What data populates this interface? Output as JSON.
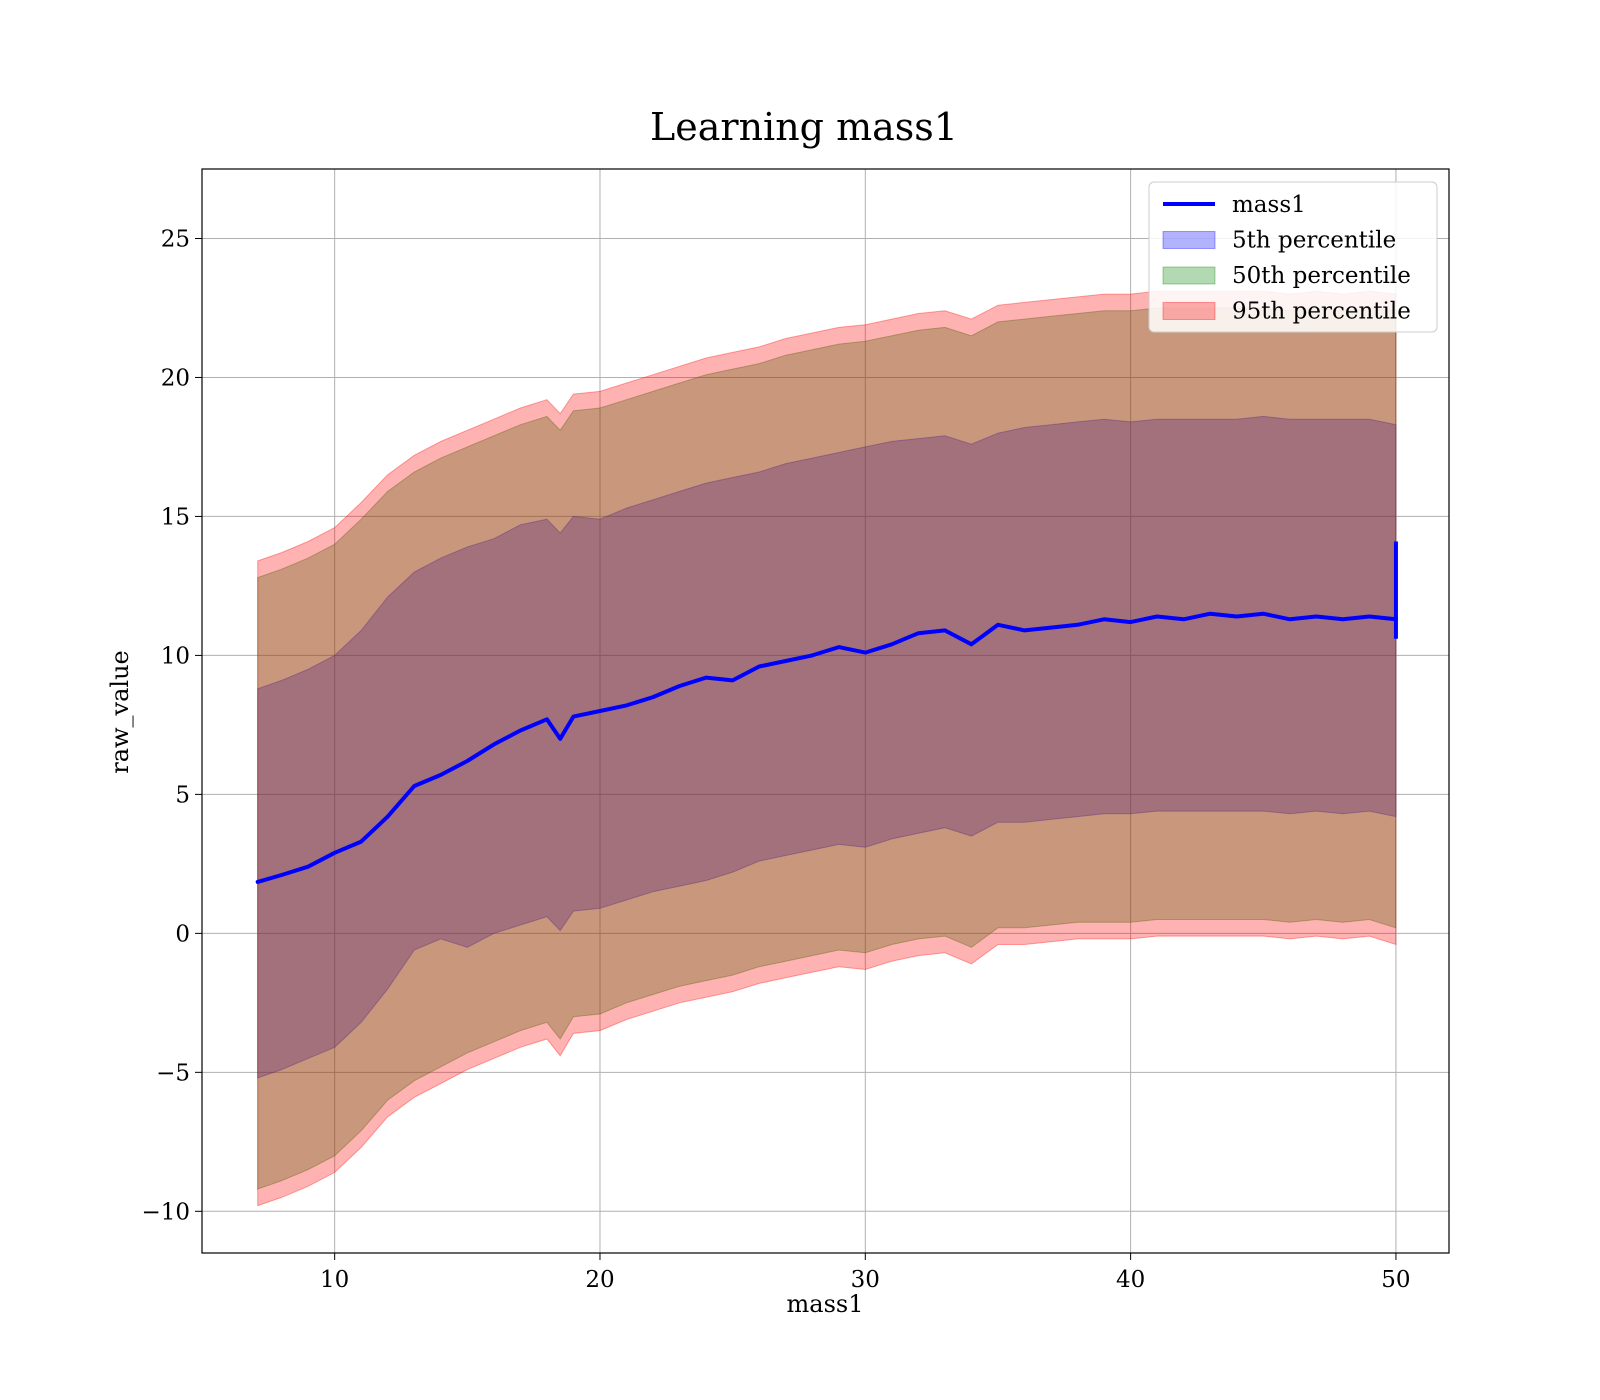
{
  "chart_data": {
    "type": "area",
    "title": "Learning mass1",
    "xlabel": "mass1",
    "ylabel": "raw_value",
    "xlim": [
      5,
      52
    ],
    "ylim": [
      -11.5,
      27.5
    ],
    "xticks": [
      10,
      20,
      30,
      40,
      50
    ],
    "xtick_labels": [
      "10",
      "20",
      "30",
      "40",
      "50"
    ],
    "yticks": [
      -10,
      -5,
      0,
      5,
      10,
      15,
      20,
      25
    ],
    "ytick_labels": [
      "−10",
      "−5",
      "0",
      "5",
      "10",
      "15",
      "20",
      "25"
    ],
    "grid": true,
    "legend_position": "top-right",
    "x": [
      7.1,
      8,
      9,
      10,
      11,
      12,
      13,
      14,
      15,
      16,
      17,
      18,
      18.5,
      19,
      20,
      21,
      22,
      23,
      24,
      25,
      26,
      27,
      28,
      29,
      30,
      31,
      32,
      33,
      34,
      35,
      36,
      37,
      38,
      39,
      40,
      41,
      42,
      43,
      44,
      45,
      46,
      47,
      48,
      49,
      50
    ],
    "series": [
      {
        "name": "mass1",
        "kind": "line",
        "color": "#0000ff",
        "values": [
          1.85,
          2.1,
          2.4,
          2.9,
          3.3,
          4.2,
          5.3,
          5.7,
          6.2,
          6.8,
          7.3,
          7.7,
          7.0,
          7.8,
          8.0,
          8.2,
          8.5,
          8.9,
          9.2,
          9.1,
          9.6,
          9.8,
          10.0,
          10.3,
          10.1,
          10.4,
          10.8,
          10.9,
          10.4,
          11.1,
          10.9,
          11.0,
          11.1,
          11.3,
          11.2,
          11.4,
          11.3,
          11.5,
          11.4,
          11.5,
          11.3,
          11.4,
          11.3,
          11.4,
          11.3
        ],
        "end_spike": [
          10.6,
          14.1
        ]
      },
      {
        "name": "5th percentile",
        "kind": "band",
        "color": "#0000ff",
        "lower": [
          -5.2,
          -4.9,
          -4.5,
          -4.1,
          -3.2,
          -2.0,
          -0.6,
          -0.2,
          -0.5,
          0.0,
          0.3,
          0.6,
          0.1,
          0.8,
          0.9,
          1.2,
          1.5,
          1.7,
          1.9,
          2.2,
          2.6,
          2.8,
          3.0,
          3.2,
          3.1,
          3.4,
          3.6,
          3.8,
          3.5,
          4.0,
          4.0,
          4.1,
          4.2,
          4.3,
          4.3,
          4.4,
          4.4,
          4.4,
          4.4,
          4.4,
          4.3,
          4.4,
          4.3,
          4.4,
          4.2
        ],
        "upper": [
          8.8,
          9.1,
          9.5,
          10.0,
          10.9,
          12.1,
          13.0,
          13.5,
          13.9,
          14.2,
          14.7,
          14.9,
          14.4,
          15.0,
          14.9,
          15.3,
          15.6,
          15.9,
          16.2,
          16.4,
          16.6,
          16.9,
          17.1,
          17.3,
          17.5,
          17.7,
          17.8,
          17.9,
          17.6,
          18.0,
          18.2,
          18.3,
          18.4,
          18.5,
          18.4,
          18.5,
          18.5,
          18.5,
          18.5,
          18.6,
          18.5,
          18.5,
          18.5,
          18.5,
          18.3
        ]
      },
      {
        "name": "50th percentile",
        "kind": "band",
        "color": "#008000",
        "lower": [
          -9.2,
          -8.9,
          -8.5,
          -8.0,
          -7.1,
          -6.0,
          -5.3,
          -4.8,
          -4.3,
          -3.9,
          -3.5,
          -3.2,
          -3.8,
          -3.0,
          -2.9,
          -2.5,
          -2.2,
          -1.9,
          -1.7,
          -1.5,
          -1.2,
          -1.0,
          -0.8,
          -0.6,
          -0.7,
          -0.4,
          -0.2,
          -0.1,
          -0.5,
          0.2,
          0.2,
          0.3,
          0.4,
          0.4,
          0.4,
          0.5,
          0.5,
          0.5,
          0.5,
          0.5,
          0.4,
          0.5,
          0.4,
          0.5,
          0.2
        ],
        "upper": [
          12.8,
          13.1,
          13.5,
          14.0,
          14.9,
          15.9,
          16.6,
          17.1,
          17.5,
          17.9,
          18.3,
          18.6,
          18.1,
          18.8,
          18.9,
          19.2,
          19.5,
          19.8,
          20.1,
          20.3,
          20.5,
          20.8,
          21.0,
          21.2,
          21.3,
          21.5,
          21.7,
          21.8,
          21.5,
          22.0,
          22.1,
          22.2,
          22.3,
          22.4,
          22.4,
          22.5,
          22.5,
          22.5,
          22.5,
          22.5,
          22.4,
          22.5,
          22.4,
          22.5,
          22.4
        ]
      },
      {
        "name": "95th percentile",
        "kind": "band",
        "color": "#ff0000",
        "lower": [
          -9.8,
          -9.5,
          -9.1,
          -8.6,
          -7.7,
          -6.6,
          -5.9,
          -5.4,
          -4.9,
          -4.5,
          -4.1,
          -3.8,
          -4.4,
          -3.6,
          -3.5,
          -3.1,
          -2.8,
          -2.5,
          -2.3,
          -2.1,
          -1.8,
          -1.6,
          -1.4,
          -1.2,
          -1.3,
          -1.0,
          -0.8,
          -0.7,
          -1.1,
          -0.4,
          -0.4,
          -0.3,
          -0.2,
          -0.2,
          -0.2,
          -0.1,
          -0.1,
          -0.1,
          -0.1,
          -0.1,
          -0.2,
          -0.1,
          -0.2,
          -0.1,
          -0.4
        ],
        "upper": [
          13.4,
          13.7,
          14.1,
          14.6,
          15.5,
          16.5,
          17.2,
          17.7,
          18.1,
          18.5,
          18.9,
          19.2,
          18.7,
          19.4,
          19.5,
          19.8,
          20.1,
          20.4,
          20.7,
          20.9,
          21.1,
          21.4,
          21.6,
          21.8,
          21.9,
          22.1,
          22.3,
          22.4,
          22.1,
          22.6,
          22.7,
          22.8,
          22.9,
          23.0,
          23.0,
          23.1,
          23.1,
          23.1,
          23.1,
          23.1,
          23.0,
          23.1,
          23.0,
          23.1,
          23.0
        ]
      }
    ]
  }
}
